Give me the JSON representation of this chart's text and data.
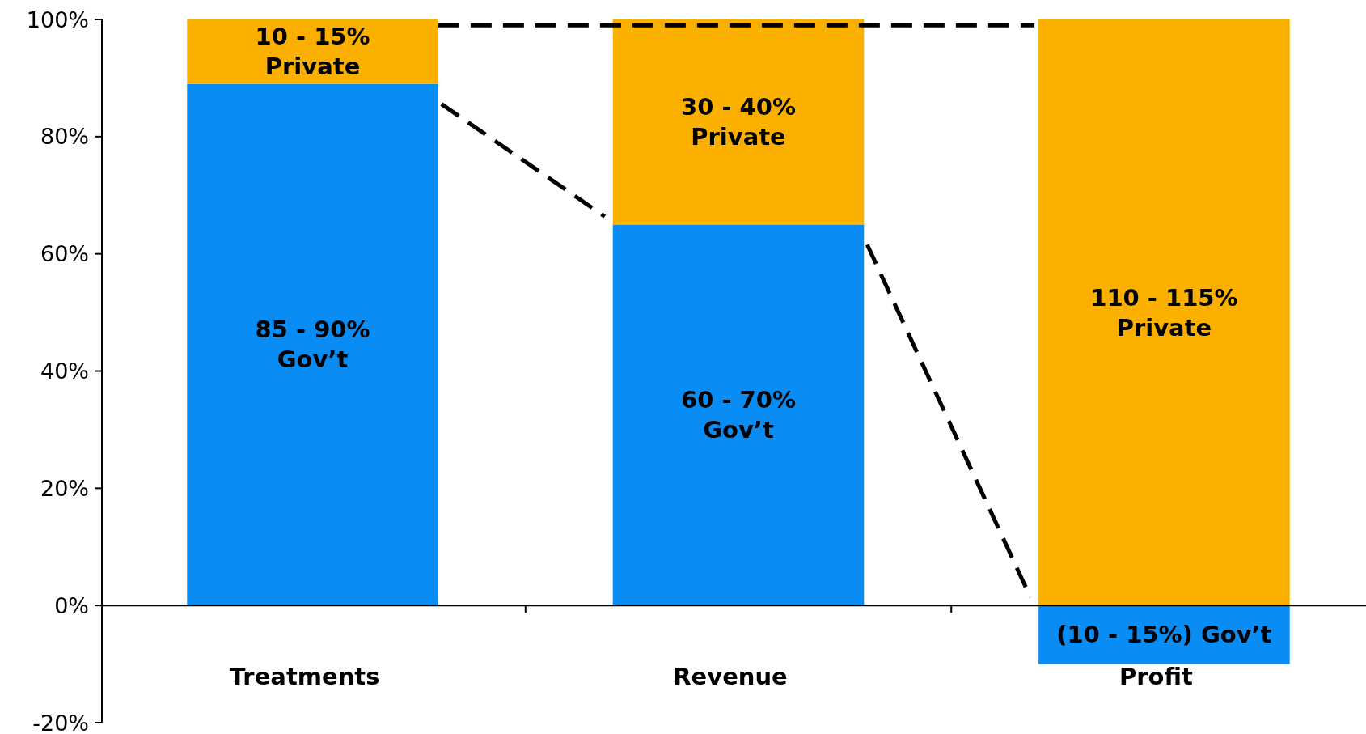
{
  "chart_data": {
    "type": "bar",
    "stacked": true,
    "categories": [
      "Treatments",
      "Revenue",
      "Profit"
    ],
    "series": [
      {
        "color": "#0a8cf5",
        "values": [
          89,
          65,
          -10
        ]
      },
      {
        "color": "#fbb000",
        "values": [
          11,
          35,
          100
        ]
      }
    ],
    "annotations": [
      "85 - 90%\nGov’t",
      "60 - 70%\nGov’t",
      "(10 - 15%) Gov’t",
      "10 - 15%\nPrivate",
      "30 - 40%\nPrivate",
      "110 - 115%\nPrivate"
    ],
    "ref_lines": [
      {
        "axis": "y",
        "value": 99,
        "color": "#000000",
        "line_style": "dashed"
      }
    ],
    "ylim": [
      -20,
      100
    ],
    "yticks": [
      {
        "value": -20,
        "label": "-20%"
      },
      {
        "value": 0,
        "label": "0%"
      },
      {
        "value": 20,
        "label": "20%"
      },
      {
        "value": 40,
        "label": "40%"
      },
      {
        "value": 60,
        "label": "60%"
      },
      {
        "value": 80,
        "label": "80%"
      },
      {
        "value": 100,
        "label": "100%"
      }
    ],
    "grid": false
  }
}
